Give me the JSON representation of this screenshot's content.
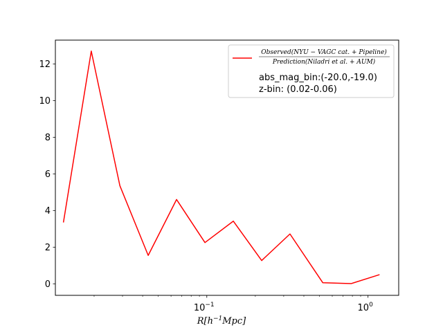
{
  "chart_data": {
    "type": "line",
    "x_scale": "log",
    "xlabel_main": "R[h",
    "xlabel_sup": "−1",
    "xlabel_end": "Mpc]",
    "ylabel": "",
    "xlim": [
      0.0115,
      1.55
    ],
    "ylim": [
      -0.63,
      13.3
    ],
    "yticks": [
      0,
      2,
      4,
      6,
      8,
      10,
      12
    ],
    "xticks": [
      {
        "value": 0.1,
        "base": "10",
        "exp": "−1"
      },
      {
        "value": 1,
        "base": "10",
        "exp": "0"
      }
    ],
    "grid": false,
    "legend_position": "upper right",
    "series": [
      {
        "name_numerator": "Observed(NYU − VAGC cat. + Pipeline)",
        "name_denominator": "Prediction(Niladri et al. + AUM)",
        "color": "#ff0000",
        "x": [
          0.0129,
          0.0192,
          0.0289,
          0.0433,
          0.0649,
          0.0974,
          0.146,
          0.219,
          0.328,
          0.524,
          0.786,
          1.179
        ],
        "y": [
          3.35,
          12.7,
          5.35,
          1.55,
          4.6,
          2.25,
          3.42,
          1.27,
          2.72,
          0.06,
          0.01,
          0.5
        ]
      }
    ],
    "legend_notes": [
      "abs_mag_bin:(-20.0,-19.0)",
      "z-bin: (0.02-0.06)"
    ]
  }
}
